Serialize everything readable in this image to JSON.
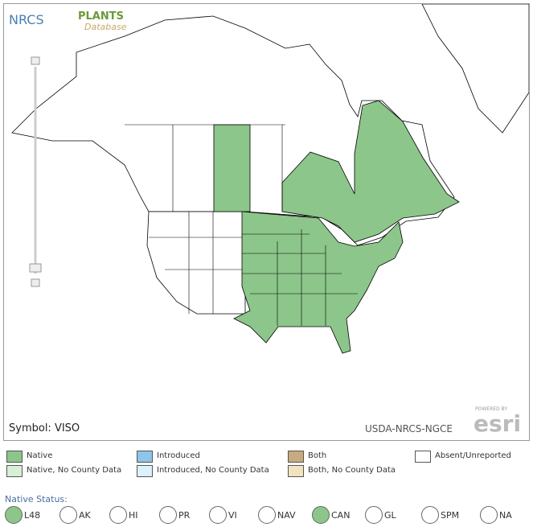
{
  "header": {
    "nrcs": "NRCS",
    "plants": "PLANTS",
    "database": "Database"
  },
  "map": {
    "symbol": "Symbol: VISO",
    "credit": "USDA-NRCS-NGCE",
    "powered": "POWERED BY",
    "esri": "esri"
  },
  "legend": {
    "items": [
      {
        "label": "Native",
        "color": "#8cc68a"
      },
      {
        "label": "Introduced",
        "color": "#8ec5ea"
      },
      {
        "label": "Both",
        "color": "#c8aa80"
      },
      {
        "label": "Absent/Unreported",
        "color": "#ffffff"
      },
      {
        "label": "Native, No County Data",
        "color": "#d7efd4"
      },
      {
        "label": "Introduced, No County Data",
        "color": "#dcf1fb"
      },
      {
        "label": "Both, No County Data",
        "color": "#f1e3c0"
      }
    ]
  },
  "native_status": {
    "title": "Native Status:",
    "options": [
      {
        "label": "L48",
        "selected": true
      },
      {
        "label": "AK",
        "selected": false
      },
      {
        "label": "HI",
        "selected": false
      },
      {
        "label": "PR",
        "selected": false
      },
      {
        "label": "VI",
        "selected": false
      },
      {
        "label": "NAV",
        "selected": false
      },
      {
        "label": "CAN",
        "selected": true
      },
      {
        "label": "GL",
        "selected": false
      },
      {
        "label": "SPM",
        "selected": false
      },
      {
        "label": "NA",
        "selected": false
      }
    ]
  }
}
